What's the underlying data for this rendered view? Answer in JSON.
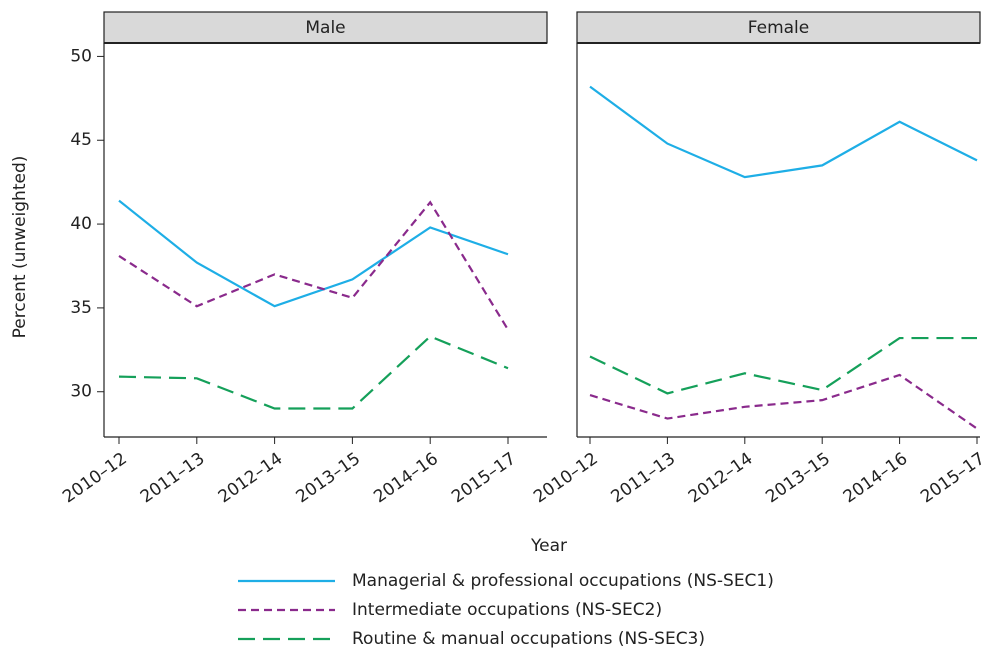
{
  "chart_data": {
    "type": "line",
    "ylabel": "Percent (unweighted)",
    "xlabel": "Year",
    "categories": [
      "2010–12",
      "2011–13",
      "2012–14",
      "2013–15",
      "2014–16",
      "2015–17"
    ],
    "ylim": [
      27.3,
      50.8
    ],
    "yticks": [
      30,
      35,
      40,
      45,
      50
    ],
    "legend_series": [
      {
        "name": "Managerial & professional occupations (NS-SEC1)",
        "color": "#1eaee6",
        "dash": "none"
      },
      {
        "name": "Intermediate occupations (NS-SEC2)",
        "color": "#8a2a8c",
        "dash": "8,5"
      },
      {
        "name": "Routine & manual occupations (NS-SEC3)",
        "color": "#15a05a",
        "dash": "17,8"
      }
    ],
    "panels": [
      {
        "title": "Male",
        "series": [
          {
            "values": [
              41.4,
              37.7,
              35.1,
              36.7,
              39.8,
              38.2
            ]
          },
          {
            "values": [
              38.1,
              35.1,
              37.0,
              35.6,
              41.3,
              33.7
            ]
          },
          {
            "values": [
              30.9,
              30.8,
              29.0,
              29.0,
              33.3,
              31.4
            ]
          }
        ]
      },
      {
        "title": "Female",
        "series": [
          {
            "values": [
              48.2,
              44.8,
              42.8,
              43.5,
              46.1,
              43.8
            ]
          },
          {
            "values": [
              29.8,
              28.4,
              29.1,
              29.5,
              31.0,
              27.8
            ]
          },
          {
            "values": [
              32.1,
              29.9,
              31.1,
              30.1,
              33.2,
              33.2
            ]
          }
        ]
      }
    ]
  }
}
